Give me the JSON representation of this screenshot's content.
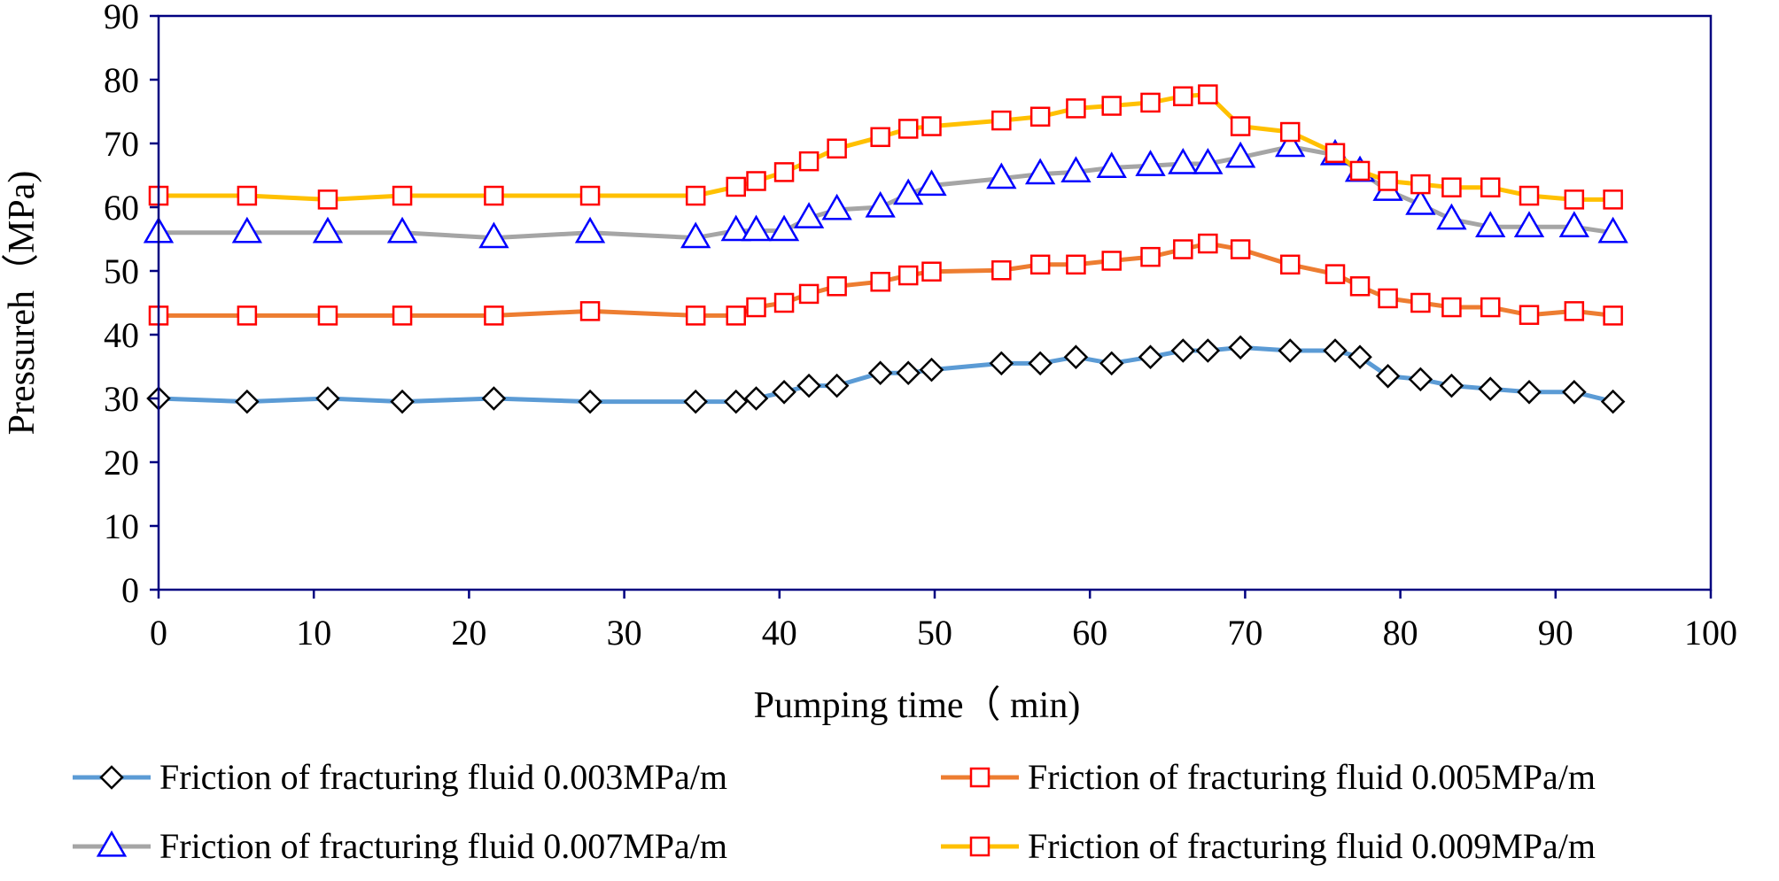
{
  "chart_data": {
    "type": "line",
    "title": "",
    "xlabel": "Pumping  time（ min)",
    "ylabel": "Pressureh（MPa)",
    "xlim": [
      0,
      100
    ],
    "ylim": [
      0,
      90
    ],
    "xticks": [
      0,
      10,
      20,
      30,
      40,
      50,
      60,
      70,
      80,
      90,
      100
    ],
    "yticks": [
      0,
      10,
      20,
      30,
      40,
      50,
      60,
      70,
      80,
      90
    ],
    "grid": false,
    "legend_position": "bottom",
    "series": [
      {
        "name": "Friction of fracturing fluid 0.003MPa/m",
        "color": "#5b9bd5",
        "marker": "diamond",
        "marker_color": "#000000",
        "x": [
          0,
          5.7,
          10.9,
          15.7,
          21.6,
          27.8,
          34.6,
          37.2,
          38.5,
          40.3,
          41.9,
          43.7,
          46.5,
          48.3,
          49.8,
          54.3,
          56.8,
          59.1,
          61.4,
          63.9,
          66.0,
          67.6,
          69.7,
          72.9,
          75.8,
          77.4,
          79.2,
          81.3,
          83.3,
          85.8,
          88.3,
          91.2,
          93.7
        ],
        "y": [
          30,
          29.5,
          30,
          29.5,
          30,
          29.5,
          29.5,
          29.5,
          30,
          31,
          32,
          32,
          34,
          34,
          34.5,
          35.5,
          35.5,
          36.5,
          35.5,
          36.5,
          37.5,
          37.5,
          38,
          37.5,
          37.5,
          36.5,
          33.5,
          33,
          32,
          31.5,
          31,
          31,
          29.5
        ]
      },
      {
        "name": "Friction of fracturing fluid 0.005MPa/m",
        "color": "#ed7d31",
        "marker": "square",
        "marker_color": "#ff0000",
        "x": [
          0,
          5.7,
          10.9,
          15.7,
          21.6,
          27.8,
          34.6,
          37.2,
          38.5,
          40.3,
          41.9,
          43.7,
          46.5,
          48.3,
          49.8,
          54.3,
          56.8,
          59.1,
          61.4,
          63.9,
          66.0,
          67.6,
          69.7,
          72.9,
          75.8,
          77.4,
          79.2,
          81.3,
          83.3,
          85.8,
          88.3,
          91.2,
          93.7
        ],
        "y": [
          43,
          43,
          43,
          43,
          43,
          43.7,
          43,
          43,
          44.3,
          45,
          46.4,
          47.6,
          48.3,
          49.3,
          49.9,
          50.1,
          51,
          51,
          51.6,
          52.2,
          53.4,
          54.3,
          53.4,
          51,
          49.5,
          47.6,
          45.7,
          45,
          44.3,
          44.3,
          43.1,
          43.7,
          43
        ]
      },
      {
        "name": "Friction of fracturing fluid 0.007MPa/m",
        "color": "#a5a5a5",
        "marker": "triangle",
        "marker_color": "#0000ff",
        "x": [
          0,
          5.7,
          10.9,
          15.7,
          21.6,
          27.8,
          34.6,
          37.2,
          38.5,
          40.3,
          41.9,
          43.7,
          46.5,
          48.3,
          49.8,
          54.3,
          56.8,
          59.1,
          61.4,
          63.9,
          66.0,
          67.6,
          69.7,
          72.9,
          75.8,
          77.4,
          79.2,
          81.3,
          83.3,
          85.8,
          88.3,
          91.2,
          93.7
        ],
        "y": [
          56,
          56,
          56,
          56,
          55.2,
          56,
          55.2,
          56.3,
          56.3,
          56.3,
          58.3,
          59.6,
          60,
          62,
          63.4,
          64.5,
          65.2,
          65.5,
          66.2,
          66.5,
          66.8,
          66.8,
          67.8,
          69.5,
          68.2,
          65.6,
          62.6,
          60.4,
          58.1,
          56.9,
          56.9,
          56.9,
          56
        ]
      },
      {
        "name": "Friction of fracturing fluid 0.009MPa/m",
        "color": "#ffc000",
        "marker": "square",
        "marker_color": "#ff0000",
        "x": [
          0,
          5.7,
          10.9,
          15.7,
          21.6,
          27.8,
          34.6,
          37.2,
          38.5,
          40.3,
          41.9,
          43.7,
          46.5,
          48.3,
          49.8,
          54.3,
          56.8,
          59.1,
          61.4,
          63.9,
          66.0,
          67.6,
          69.7,
          72.9,
          75.8,
          77.4,
          79.2,
          81.3,
          83.3,
          85.8,
          88.3,
          91.2,
          93.7
        ],
        "y": [
          61.8,
          61.8,
          61.2,
          61.8,
          61.8,
          61.8,
          61.8,
          63.2,
          64.1,
          65.5,
          67.2,
          69.2,
          71,
          72.3,
          72.7,
          73.6,
          74.2,
          75.5,
          75.9,
          76.4,
          77.4,
          77.7,
          72.7,
          71.8,
          68.5,
          65.7,
          64.1,
          63.6,
          63.1,
          63.1,
          61.8,
          61.2,
          61.2
        ]
      }
    ]
  }
}
